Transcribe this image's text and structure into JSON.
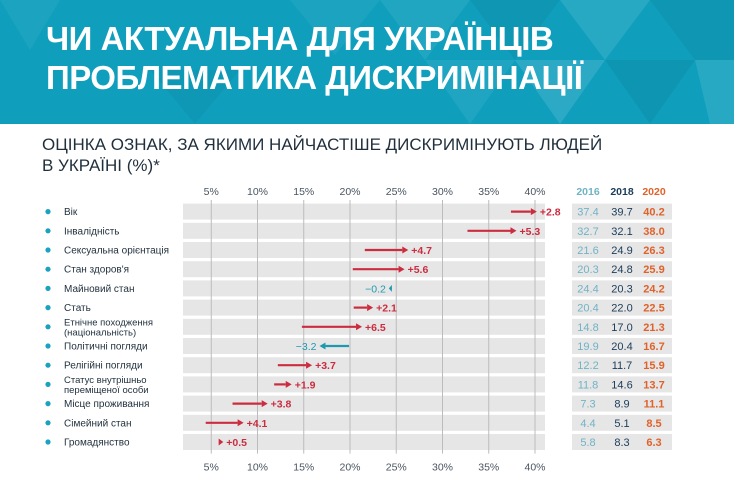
{
  "header": {
    "title_line1": "ЧИ АКТУАЛЬНА ДЛЯ УКРАЇНЦІВ",
    "title_line2": "ПРОБЛЕМАТИКА ДИСКРИМІНАЦІЇ"
  },
  "subtitle_line1": "ОЦІНКА ОЗНАК, ЗА ЯКИМИ НАЙЧАСТІШЕ ДИСКРИМІНУЮТЬ ЛЮДЕЙ",
  "subtitle_line2": "В УКРАЇНІ (%)*",
  "colors": {
    "header": "#0f9fbd",
    "increase": "#cc2c3f",
    "decrease": "#1e9ab0",
    "year2016": "#6fb3c5",
    "year2018": "#1a3c5a",
    "year2020": "#e0622b",
    "row_band": "#e6e6e6"
  },
  "chart_data": {
    "type": "dumbbell-arrow",
    "title": "ОЦІНКА ОЗНАК, ЗА ЯКИМИ НАЙЧАСТІШЕ ДИСКРИМІНУЮТЬ ЛЮДЕЙ В УКРАЇНІ (%)*",
    "xlabel": "",
    "xlim": [
      0,
      42
    ],
    "ticks": [
      5,
      10,
      15,
      20,
      25,
      30,
      35,
      40
    ],
    "tick_labels": [
      "5%",
      "10%",
      "15%",
      "20%",
      "25%",
      "30%",
      "35%",
      "40%"
    ],
    "year_labels": [
      "2016",
      "2018",
      "2020"
    ],
    "rows": [
      {
        "label": [
          "Вік"
        ],
        "v2016": "37.4",
        "v2018": "39.7",
        "v2020": "40.2",
        "from": 37.4,
        "to": 40.2,
        "change": "+2.8"
      },
      {
        "label": [
          "Інвалідність"
        ],
        "v2016": "32.7",
        "v2018": "32.1",
        "v2020": "38.0",
        "from": 32.7,
        "to": 38.0,
        "change": "+5.3"
      },
      {
        "label": [
          "Сексуальна орієнтація"
        ],
        "v2016": "21.6",
        "v2018": "24.9",
        "v2020": "26.3",
        "from": 21.6,
        "to": 26.3,
        "change": "+4.7"
      },
      {
        "label": [
          "Стан здоров'я"
        ],
        "v2016": "20.3",
        "v2018": "24.8",
        "v2020": "25.9",
        "from": 20.3,
        "to": 25.9,
        "change": "+5.6"
      },
      {
        "label": [
          "Майновий стан"
        ],
        "v2016": "24.4",
        "v2018": "20.3",
        "v2020": "24.2",
        "from": 24.4,
        "to": 24.2,
        "change": "−0.2"
      },
      {
        "label": [
          "Стать"
        ],
        "v2016": "20.4",
        "v2018": "22.0",
        "v2020": "22.5",
        "from": 20.4,
        "to": 22.5,
        "change": "+2.1"
      },
      {
        "label": [
          "Етнічне походження",
          "(національність)"
        ],
        "v2016": "14.8",
        "v2018": "17.0",
        "v2020": "21.3",
        "from": 14.8,
        "to": 21.3,
        "change": "+6.5"
      },
      {
        "label": [
          "Політичні погляди"
        ],
        "v2016": "19.9",
        "v2018": "20.4",
        "v2020": "16.7",
        "from": 19.9,
        "to": 16.7,
        "change": "−3.2"
      },
      {
        "label": [
          "Релігійні погляди"
        ],
        "v2016": "12.2",
        "v2018": "11.7",
        "v2020": "15.9",
        "from": 12.2,
        "to": 15.9,
        "change": "+3.7"
      },
      {
        "label": [
          "Статус внутрішньо",
          "переміщеної особи"
        ],
        "v2016": "11.8",
        "v2018": "14.6",
        "v2020": "13.7",
        "from": 11.8,
        "to": 13.7,
        "change": "+1.9"
      },
      {
        "label": [
          "Місце проживання"
        ],
        "v2016": "7.3",
        "v2018": "8.9",
        "v2020": "11.1",
        "from": 7.3,
        "to": 11.1,
        "change": "+3.8"
      },
      {
        "label": [
          "Сімейний стан"
        ],
        "v2016": "4.4",
        "v2018": "5.1",
        "v2020": "8.5",
        "from": 4.4,
        "to": 8.5,
        "change": "+4.1"
      },
      {
        "label": [
          "Громадянство"
        ],
        "v2016": "5.8",
        "v2018": "8.3",
        "v2020": "6.3",
        "from": 5.8,
        "to": 6.3,
        "change": "+0.5"
      }
    ]
  }
}
